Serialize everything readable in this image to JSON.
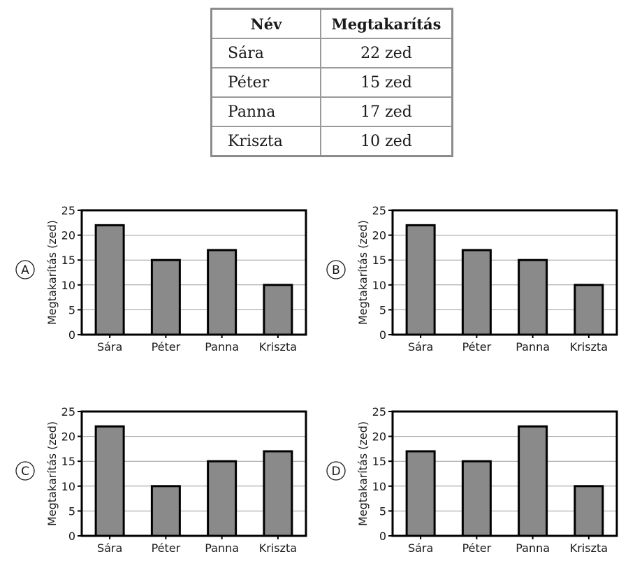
{
  "table": {
    "headers": [
      "Név",
      "Megtakarítás"
    ],
    "rows": [
      [
        "Sára",
        "22 zed"
      ],
      [
        "Péter",
        "15 zed"
      ],
      [
        "Panna",
        "17 zed"
      ],
      [
        "Kriszta",
        "10 zed"
      ]
    ]
  },
  "colors": {
    "bar": "#8a8a8a",
    "bar_edge": "#000000",
    "grid": "#9a9a9a"
  },
  "chart_data": [
    {
      "type": "bar",
      "option": "A",
      "categories": [
        "Sára",
        "Péter",
        "Panna",
        "Kriszta"
      ],
      "values": [
        22,
        15,
        17,
        10
      ],
      "ylabel": "Megtakarítás (zed)",
      "ylim": [
        0,
        25
      ],
      "yticks": [
        "0",
        "5",
        "10",
        "15",
        "20",
        "25"
      ],
      "grid": true
    },
    {
      "type": "bar",
      "option": "B",
      "categories": [
        "Sára",
        "Péter",
        "Panna",
        "Kriszta"
      ],
      "values": [
        22,
        17,
        15,
        10
      ],
      "ylabel": "Megtakarítás (zed)",
      "ylim": [
        0,
        25
      ],
      "yticks": [
        "0",
        "5",
        "10",
        "15",
        "20",
        "25"
      ],
      "grid": true
    },
    {
      "type": "bar",
      "option": "C",
      "categories": [
        "Sára",
        "Péter",
        "Panna",
        "Kriszta"
      ],
      "values": [
        22,
        10,
        15,
        17
      ],
      "ylabel": "Megtakarítás (zed)",
      "ylim": [
        0,
        25
      ],
      "yticks": [
        "0",
        "5",
        "10",
        "15",
        "20",
        "25"
      ],
      "grid": true
    },
    {
      "type": "bar",
      "option": "D",
      "categories": [
        "Sára",
        "Péter",
        "Panna",
        "Kriszta"
      ],
      "values": [
        17,
        15,
        22,
        10
      ],
      "ylabel": "Megtakarítás (zed)",
      "ylim": [
        0,
        25
      ],
      "yticks": [
        "0",
        "5",
        "10",
        "15",
        "20",
        "25"
      ],
      "grid": true
    }
  ]
}
